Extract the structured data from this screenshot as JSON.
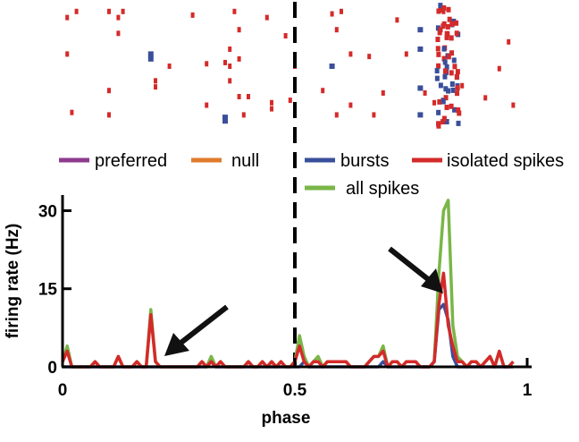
{
  "chart_data": {
    "type": "line",
    "xlabel": "phase",
    "ylabel": "firing rate (Hz)",
    "xlim": [
      0,
      1
    ],
    "ylim": [
      0,
      33
    ],
    "x_ticks": [
      0,
      0.5,
      1
    ],
    "x_tick_labels": [
      "0",
      "0.5",
      "1"
    ],
    "y_ticks": [
      0,
      15,
      30
    ],
    "y_tick_labels": [
      "0",
      "15",
      "30"
    ],
    "grid": false,
    "legend_position": "top",
    "legend": [
      {
        "name": "preferred",
        "color": "#8e3b8e"
      },
      {
        "name": "null",
        "color": "#e07b2c"
      },
      {
        "name": "bursts",
        "color": "#3a4f9a"
      },
      {
        "name": "isolated spikes",
        "color": "#d42a2a"
      },
      {
        "name": "all spikes",
        "color": "#7ab648"
      }
    ],
    "vline_x": 0.5,
    "x": [
      0,
      0.01,
      0.02,
      0.03,
      0.04,
      0.05,
      0.06,
      0.07,
      0.08,
      0.09,
      0.1,
      0.11,
      0.12,
      0.13,
      0.14,
      0.15,
      0.16,
      0.17,
      0.18,
      0.19,
      0.2,
      0.21,
      0.22,
      0.23,
      0.24,
      0.25,
      0.26,
      0.27,
      0.28,
      0.29,
      0.3,
      0.31,
      0.32,
      0.33,
      0.34,
      0.35,
      0.36,
      0.37,
      0.38,
      0.39,
      0.4,
      0.41,
      0.42,
      0.43,
      0.44,
      0.45,
      0.46,
      0.47,
      0.48,
      0.49,
      0.5,
      0.51,
      0.52,
      0.53,
      0.54,
      0.55,
      0.56,
      0.57,
      0.58,
      0.59,
      0.6,
      0.61,
      0.62,
      0.63,
      0.64,
      0.65,
      0.66,
      0.67,
      0.68,
      0.69,
      0.7,
      0.71,
      0.72,
      0.73,
      0.74,
      0.75,
      0.76,
      0.77,
      0.78,
      0.79,
      0.8,
      0.81,
      0.82,
      0.83,
      0.84,
      0.85,
      0.86,
      0.87,
      0.88,
      0.89,
      0.9,
      0.91,
      0.92,
      0.93,
      0.94,
      0.95,
      0.96,
      0.97
    ],
    "series": [
      {
        "name": "all spikes",
        "color": "#7ab648",
        "values": [
          1,
          4,
          0,
          0,
          0,
          0,
          0,
          1,
          0,
          0,
          0,
          0,
          2,
          0,
          0,
          0,
          1,
          0,
          0,
          11,
          1,
          0,
          0,
          0,
          0,
          0,
          0,
          0,
          0,
          0,
          1,
          0,
          2,
          0,
          1,
          0,
          0,
          0,
          0,
          0,
          1,
          0,
          0,
          1,
          0,
          1,
          0,
          1,
          0,
          0,
          1,
          6,
          2,
          0,
          1,
          2,
          0,
          1,
          1,
          1,
          1,
          1,
          0,
          0,
          0,
          0,
          1,
          2,
          2,
          4,
          0,
          1,
          1,
          0,
          1,
          1,
          1,
          0,
          0,
          0,
          1,
          18,
          30,
          32,
          8,
          2,
          1,
          0,
          1,
          1,
          0,
          1,
          2,
          0,
          3,
          0,
          0,
          1
        ]
      },
      {
        "name": "bursts",
        "color": "#3a4f9a",
        "values": [
          0,
          0,
          0,
          0,
          0,
          0,
          0,
          0,
          0,
          0,
          0,
          0,
          0,
          0,
          0,
          0,
          0,
          0,
          0,
          0,
          0,
          0,
          0,
          0,
          0,
          0,
          0,
          0,
          0,
          0,
          0,
          0,
          1,
          0,
          0,
          0,
          0,
          0,
          0,
          0,
          0,
          0,
          0,
          0,
          0,
          0,
          0,
          0,
          0,
          0,
          0,
          0,
          1,
          0,
          0,
          0,
          0,
          0,
          0,
          0,
          0,
          0,
          0,
          0,
          0,
          0,
          0,
          0,
          0,
          1,
          0,
          0,
          0,
          0,
          0,
          0,
          0,
          0,
          0,
          0,
          1,
          11,
          12,
          9,
          2,
          0,
          0,
          0,
          0,
          0,
          0,
          0,
          0,
          0,
          0,
          0,
          0,
          0
        ]
      },
      {
        "name": "isolated spikes",
        "color": "#d42a2a",
        "values": [
          1,
          3,
          0,
          0,
          0,
          0,
          0,
          1,
          0,
          0,
          0,
          0,
          2,
          0,
          0,
          0,
          1,
          0,
          0,
          10,
          1,
          0,
          0,
          0,
          0,
          0,
          0,
          0,
          0,
          0,
          1,
          0,
          1,
          0,
          1,
          0,
          0,
          0,
          0,
          0,
          1,
          0,
          0,
          1,
          0,
          1,
          0,
          1,
          0,
          0,
          1,
          4,
          1,
          0,
          1,
          1,
          0,
          1,
          1,
          1,
          1,
          1,
          0,
          0,
          0,
          0,
          1,
          2,
          2,
          3,
          0,
          1,
          1,
          0,
          1,
          1,
          1,
          0,
          0,
          0,
          1,
          12,
          18,
          8,
          4,
          1,
          1,
          0,
          1,
          1,
          0,
          1,
          2,
          0,
          3,
          0,
          0,
          1
        ]
      }
    ],
    "raster": {
      "red": [
        [
          0.01,
          0.1
        ],
        [
          0.01,
          0.4
        ],
        [
          0.02,
          0.88
        ],
        [
          0.03,
          0.05
        ],
        [
          0.1,
          0.7
        ],
        [
          0.1,
          0.9
        ],
        [
          0.1,
          0.05
        ],
        [
          0.12,
          0.1
        ],
        [
          0.12,
          0.23
        ],
        [
          0.13,
          0.05
        ],
        [
          0.2,
          0.62
        ],
        [
          0.2,
          0.67
        ],
        [
          0.23,
          0.5
        ],
        [
          0.28,
          0.08
        ],
        [
          0.31,
          0.48
        ],
        [
          0.31,
          0.82
        ],
        [
          0.35,
          0.47
        ],
        [
          0.36,
          0.36
        ],
        [
          0.36,
          0.5
        ],
        [
          0.36,
          0.62
        ],
        [
          0.37,
          0.05
        ],
        [
          0.38,
          0.2
        ],
        [
          0.38,
          0.44
        ],
        [
          0.38,
          0.75
        ],
        [
          0.39,
          0.9
        ],
        [
          0.4,
          0.75
        ],
        [
          0.44,
          0.1
        ],
        [
          0.45,
          0.8
        ],
        [
          0.45,
          0.85
        ],
        [
          0.48,
          0.25
        ],
        [
          0.49,
          0.78
        ],
        [
          0.5,
          0.5
        ],
        [
          0.56,
          0.7
        ],
        [
          0.58,
          0.07
        ],
        [
          0.59,
          0.9
        ],
        [
          0.6,
          0.05
        ],
        [
          0.59,
          0.2
        ],
        [
          0.62,
          0.4
        ],
        [
          0.62,
          0.82
        ],
        [
          0.66,
          0.42
        ],
        [
          0.67,
          0.9
        ],
        [
          0.69,
          0.72
        ],
        [
          0.72,
          0.12
        ],
        [
          0.74,
          0.4
        ],
        [
          0.78,
          0.72
        ],
        [
          0.8,
          0.8
        ],
        [
          0.82,
          0.05
        ],
        [
          0.86,
          0.66
        ],
        [
          0.91,
          0.76
        ],
        [
          0.94,
          0.52
        ],
        [
          0.96,
          0.3
        ],
        [
          0.97,
          0.82
        ]
      ],
      "blue": [
        [
          0.19,
          0.4
        ],
        [
          0.19,
          0.44
        ],
        [
          0.35,
          0.92
        ],
        [
          0.35,
          0.95
        ],
        [
          0.58,
          0.5
        ],
        [
          0.77,
          0.2
        ],
        [
          0.77,
          0.36
        ],
        [
          0.77,
          0.68
        ],
        [
          0.77,
          0.9
        ]
      ]
    }
  }
}
